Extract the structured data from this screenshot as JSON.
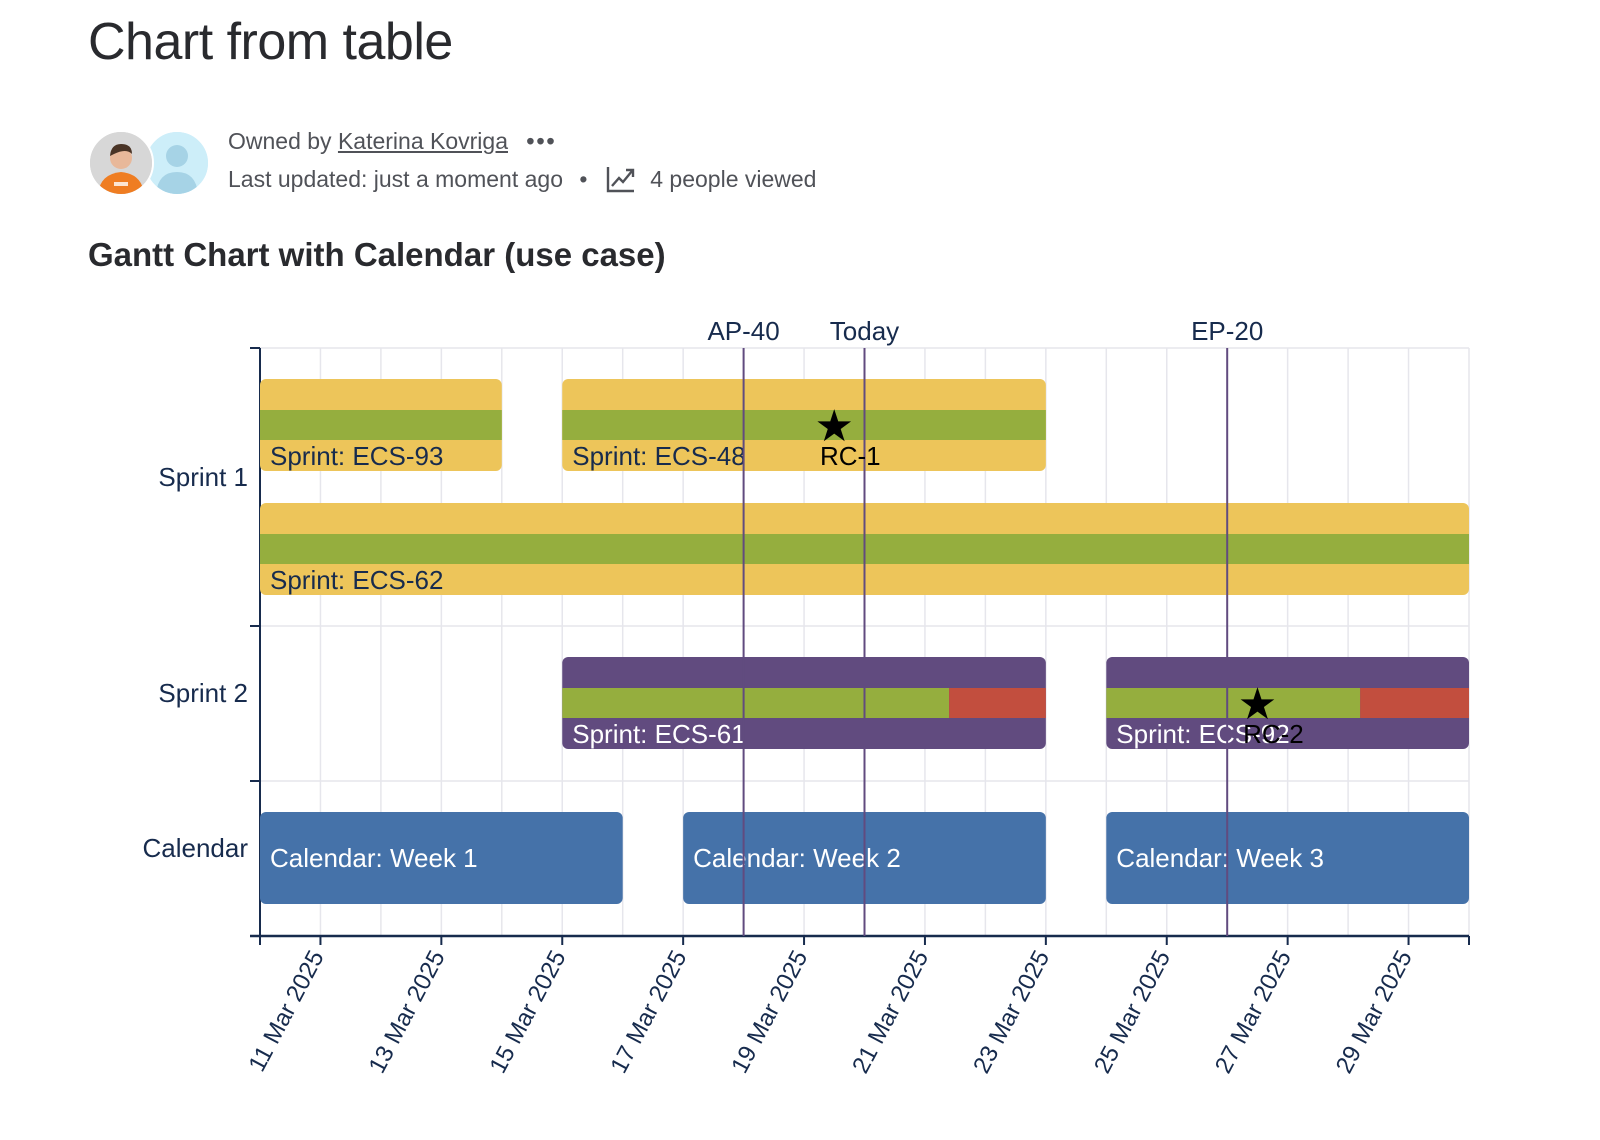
{
  "page": {
    "title": "Chart from table",
    "byline": {
      "owned_by_label": "Owned by",
      "owner_name": "Katerina Kovriga",
      "more_label": "•••",
      "last_updated": "Last updated: just a moment ago",
      "separator": "•",
      "views": "4 people viewed"
    },
    "section_title": "Gantt Chart with Calendar (use case)"
  },
  "chart_data": {
    "type": "gantt",
    "title": "Gantt Chart with Calendar (use case)",
    "x_axis": {
      "type": "date",
      "range": [
        "2025-03-10",
        "2025-03-30"
      ],
      "ticks": [
        "2025-03-11",
        "2025-03-13",
        "2025-03-15",
        "2025-03-17",
        "2025-03-19",
        "2025-03-21",
        "2025-03-23",
        "2025-03-25",
        "2025-03-27",
        "2025-03-29"
      ],
      "tick_labels": [
        "11 Mar 2025",
        "13 Mar 2025",
        "15 Mar 2025",
        "17 Mar 2025",
        "19 Mar 2025",
        "21 Mar 2025",
        "23 Mar 2025",
        "25 Mar 2025",
        "27 Mar 2025",
        "29 Mar 2025"
      ],
      "label_rotation": "-60deg",
      "grid": true,
      "minor_grid": "daily"
    },
    "categories": [
      "Sprint 1",
      "Sprint 2",
      "Calendar"
    ],
    "colors": {
      "sprint1": "#edc55a",
      "sprint2": "#614b7f",
      "calendar": "#4572a9",
      "progress_done": "#95ae3e",
      "progress_remaining": "#c24e3e",
      "marker_line": "#614b7f",
      "axis": "#172b4d",
      "grid": "#e6e6ec"
    },
    "tasks": [
      {
        "category": "Sprint 1",
        "lane": 0,
        "label": "Sprint: ECS-93",
        "start": "2025-03-10",
        "end": "2025-03-14",
        "progress": 1.0,
        "color": "sprint1",
        "text_color": "#172b4d"
      },
      {
        "category": "Sprint 1",
        "lane": 0,
        "label": "Sprint: ECS-48",
        "start": "2025-03-15",
        "end": "2025-03-23",
        "progress": 1.0,
        "color": "sprint1",
        "text_color": "#172b4d"
      },
      {
        "category": "Sprint 1",
        "lane": 1,
        "label": "Sprint: ECS-62",
        "start": "2025-03-10",
        "end": "2025-03-30",
        "progress": 1.0,
        "color": "sprint1",
        "text_color": "#172b4d"
      },
      {
        "category": "Sprint 2",
        "lane": 0,
        "label": "Sprint: ECS-61",
        "start": "2025-03-15",
        "end": "2025-03-23",
        "progress": 0.8,
        "color": "sprint2",
        "text_color": "#ffffff"
      },
      {
        "category": "Sprint 2",
        "lane": 0,
        "label": "Sprint: ECS-92",
        "start": "2025-03-24",
        "end": "2025-03-30",
        "progress": 0.7,
        "color": "sprint2",
        "text_color": "#ffffff"
      },
      {
        "category": "Calendar",
        "lane": 0,
        "label": "Calendar: Week 1",
        "start": "2025-03-10",
        "end": "2025-03-16",
        "progress": null,
        "color": "calendar",
        "text_color": "#ffffff"
      },
      {
        "category": "Calendar",
        "lane": 0,
        "label": "Calendar: Week 2",
        "start": "2025-03-17",
        "end": "2025-03-23",
        "progress": null,
        "color": "calendar",
        "text_color": "#ffffff"
      },
      {
        "category": "Calendar",
        "lane": 0,
        "label": "Calendar: Week 3",
        "start": "2025-03-24",
        "end": "2025-03-30",
        "progress": null,
        "color": "calendar",
        "text_color": "#ffffff"
      }
    ],
    "milestones": [
      {
        "label": "RC-1",
        "date": "2025-03-19T12:00",
        "category": "Sprint 1",
        "lane": 0,
        "symbol": "★"
      },
      {
        "label": "RC-2",
        "date": "2025-03-26T12:00",
        "category": "Sprint 2",
        "lane": 0,
        "symbol": "★"
      }
    ],
    "markers": [
      {
        "label": "AP-40",
        "date": "2025-03-18"
      },
      {
        "label": "Today",
        "date": "2025-03-20"
      },
      {
        "label": "EP-20",
        "date": "2025-03-26"
      }
    ]
  }
}
